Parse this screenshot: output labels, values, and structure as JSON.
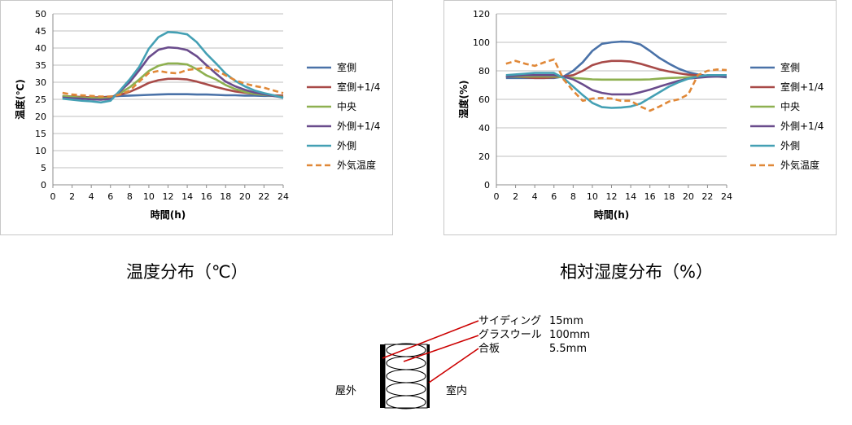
{
  "chart_data": [
    {
      "type": "line",
      "title": "",
      "xlabel": "時間(h)",
      "ylabel": "温度(℃)",
      "xlim": [
        0,
        24
      ],
      "ylim": [
        0,
        50
      ],
      "x_ticks": [
        "0",
        "2",
        "4",
        "6",
        "8",
        "10",
        "12",
        "14",
        "16",
        "18",
        "20",
        "22",
        "24"
      ],
      "y_ticks": [
        "0",
        "5",
        "10",
        "15",
        "20",
        "25",
        "30",
        "35",
        "40",
        "45",
        "50"
      ],
      "grid": true,
      "legend_position": "right",
      "x": [
        1,
        2,
        3,
        4,
        5,
        6,
        7,
        8,
        9,
        10,
        11,
        12,
        13,
        14,
        15,
        16,
        17,
        18,
        19,
        20,
        21,
        22,
        23,
        24
      ],
      "series": [
        {
          "name": "室側",
          "color": "#4a72a8",
          "dash": false,
          "values": [
            25.8,
            25.6,
            25.5,
            25.5,
            25.6,
            25.8,
            26.0,
            26.1,
            26.2,
            26.3,
            26.4,
            26.5,
            26.5,
            26.5,
            26.4,
            26.4,
            26.3,
            26.2,
            26.2,
            26.1,
            26.1,
            26.0,
            26.0,
            25.9
          ]
        },
        {
          "name": "室側+1/4",
          "color": "#a84a48",
          "dash": false,
          "values": [
            26.0,
            25.8,
            25.7,
            25.6,
            25.6,
            25.7,
            26.3,
            27.2,
            28.4,
            29.8,
            30.6,
            31.0,
            31.0,
            30.8,
            30.2,
            29.4,
            28.6,
            27.9,
            27.3,
            26.9,
            26.6,
            26.4,
            26.2,
            26.1
          ]
        },
        {
          "name": "中央",
          "color": "#8eb050",
          "dash": false,
          "values": [
            26.0,
            25.7,
            25.5,
            25.4,
            25.3,
            25.5,
            26.8,
            28.5,
            30.8,
            33.3,
            34.8,
            35.5,
            35.5,
            35.2,
            33.8,
            32.0,
            30.8,
            29.2,
            28.0,
            27.2,
            26.6,
            26.3,
            26.0,
            25.7
          ]
        },
        {
          "name": "外側+1/4",
          "color": "#6a4c8c",
          "dash": false,
          "values": [
            25.5,
            25.3,
            25.2,
            25.0,
            24.9,
            25.1,
            27.3,
            30.0,
            33.5,
            37.3,
            39.5,
            40.2,
            40.0,
            39.4,
            37.6,
            35.0,
            32.5,
            30.2,
            28.8,
            27.8,
            27.0,
            26.5,
            26.0,
            25.5
          ]
        },
        {
          "name": "外側",
          "color": "#44a0b4",
          "dash": false,
          "values": [
            25.2,
            24.9,
            24.6,
            24.4,
            24.1,
            24.6,
            27.6,
            30.8,
            34.5,
            39.8,
            43.2,
            44.7,
            44.5,
            44.0,
            41.7,
            38.3,
            35.5,
            32.5,
            30.4,
            28.8,
            27.6,
            26.8,
            26.2,
            25.4
          ]
        },
        {
          "name": "外気温度",
          "color": "#e08838",
          "dash": true,
          "values": [
            26.9,
            26.4,
            26.2,
            26.0,
            25.8,
            25.8,
            26.4,
            27.5,
            30.2,
            32.7,
            33.3,
            32.8,
            32.6,
            33.6,
            33.9,
            34.3,
            33.6,
            32.0,
            30.6,
            29.6,
            28.9,
            28.4,
            27.6,
            26.8
          ]
        }
      ]
    },
    {
      "type": "line",
      "title": "",
      "xlabel": "時間(h)",
      "ylabel": "湿度(%)",
      "xlim": [
        0,
        24
      ],
      "ylim": [
        0,
        120
      ],
      "x_ticks": [
        "0",
        "2",
        "4",
        "6",
        "8",
        "10",
        "12",
        "14",
        "16",
        "18",
        "20",
        "22",
        "24"
      ],
      "y_ticks": [
        "0",
        "20",
        "40",
        "60",
        "80",
        "100",
        "120"
      ],
      "grid": true,
      "legend_position": "right",
      "x": [
        1,
        2,
        3,
        4,
        5,
        6,
        7,
        8,
        9,
        10,
        11,
        12,
        13,
        14,
        15,
        16,
        17,
        18,
        19,
        20,
        21,
        22,
        23,
        24
      ],
      "series": [
        {
          "name": "室側",
          "color": "#4a72a8",
          "dash": false,
          "values": [
            75,
            75,
            75,
            75,
            75,
            75,
            76,
            80,
            86,
            94,
            99,
            100,
            100.5,
            100.3,
            98.5,
            94,
            89,
            85,
            81.5,
            79,
            77.5,
            76.5,
            76,
            75.5
          ]
        },
        {
          "name": "室側+1/4",
          "color": "#a84a48",
          "dash": false,
          "values": [
            76,
            76,
            75.5,
            75,
            75,
            75.5,
            76,
            77,
            80,
            84,
            86,
            87,
            87,
            86.5,
            85,
            83,
            81,
            79.5,
            78.3,
            77.3,
            76.8,
            76.5,
            76.2,
            76
          ]
        },
        {
          "name": "中央",
          "color": "#8eb050",
          "dash": false,
          "values": [
            76,
            76,
            76,
            76,
            76,
            76,
            75.5,
            75,
            74.5,
            74,
            73.8,
            73.8,
            73.8,
            73.8,
            73.8,
            74,
            74.5,
            75,
            75.2,
            75.5,
            75.8,
            76,
            76,
            76
          ]
        },
        {
          "name": "外側+1/4",
          "color": "#6a4c8c",
          "dash": false,
          "values": [
            76,
            76.5,
            77,
            77,
            77,
            77,
            76,
            74,
            70.5,
            66.5,
            64.5,
            63.5,
            63.5,
            63.5,
            65,
            66.8,
            69,
            71,
            73,
            74.5,
            75.2,
            75.8,
            76,
            76
          ]
        },
        {
          "name": "外側",
          "color": "#44a0b4",
          "dash": false,
          "values": [
            77,
            77.5,
            78,
            78.5,
            78.5,
            78.5,
            75,
            69,
            63,
            57.5,
            54.5,
            54,
            54.2,
            55,
            57,
            61,
            65,
            69,
            72,
            74.5,
            76,
            77,
            77,
            77
          ]
        },
        {
          "name": "外気温度",
          "color": "#e08838",
          "dash": true,
          "values": [
            85,
            87,
            85,
            83.5,
            86,
            88,
            74,
            66,
            59,
            60.5,
            61,
            60.5,
            59,
            59,
            55,
            52,
            55,
            58.5,
            60,
            63.5,
            77,
            80,
            81,
            80.5
          ]
        }
      ]
    }
  ],
  "captions": {
    "temp": "温度分布（℃）",
    "rh": "相対湿度分布（%）"
  },
  "diagram": {
    "layers": [
      {
        "name": "サイディング",
        "thickness": "15mm"
      },
      {
        "name": "グラスウール",
        "thickness": "100mm"
      },
      {
        "name": "合板",
        "thickness": "5.5mm"
      }
    ],
    "outside_label": "屋外",
    "inside_label": "室内",
    "leader_color": "#cc0000"
  }
}
